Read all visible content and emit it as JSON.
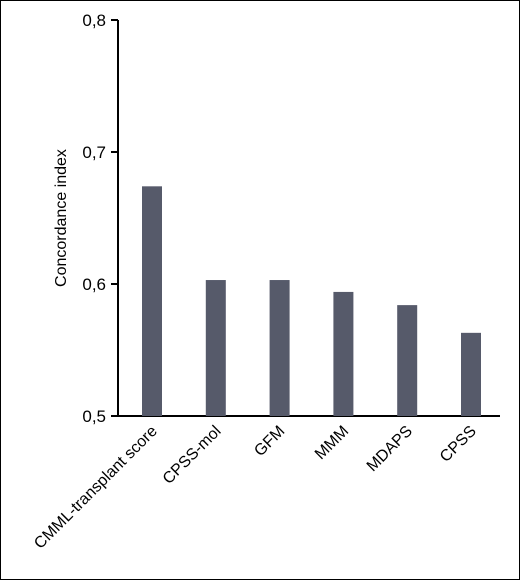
{
  "chart_data": {
    "type": "bar",
    "categories": [
      "CMML-transplant score",
      "CPSS-mol",
      "GFM",
      "MMM",
      "MDAPS",
      "CPSS"
    ],
    "values": [
      0.674,
      0.603,
      0.603,
      0.594,
      0.584,
      0.563
    ],
    "ylabel": "Concordance index",
    "xlabel": "",
    "ylim": [
      0.5,
      0.8
    ],
    "yticks": [
      0.5,
      0.6,
      0.7,
      0.8
    ],
    "ytick_labels": [
      "0,5",
      "0,6",
      "0,7",
      "0,8"
    ],
    "bar_color": "#565a6a",
    "grid": false,
    "legend": "none"
  }
}
